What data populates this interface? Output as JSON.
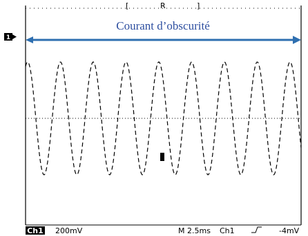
{
  "label": "Courant d’obscurité",
  "markers": {
    "channel": "1"
  },
  "status": {
    "channel": "Ch1",
    "scale": "200mV",
    "timebase": "M 2.5ms",
    "trigger_source": "Ch1",
    "trigger_level": "-4mV"
  }
}
